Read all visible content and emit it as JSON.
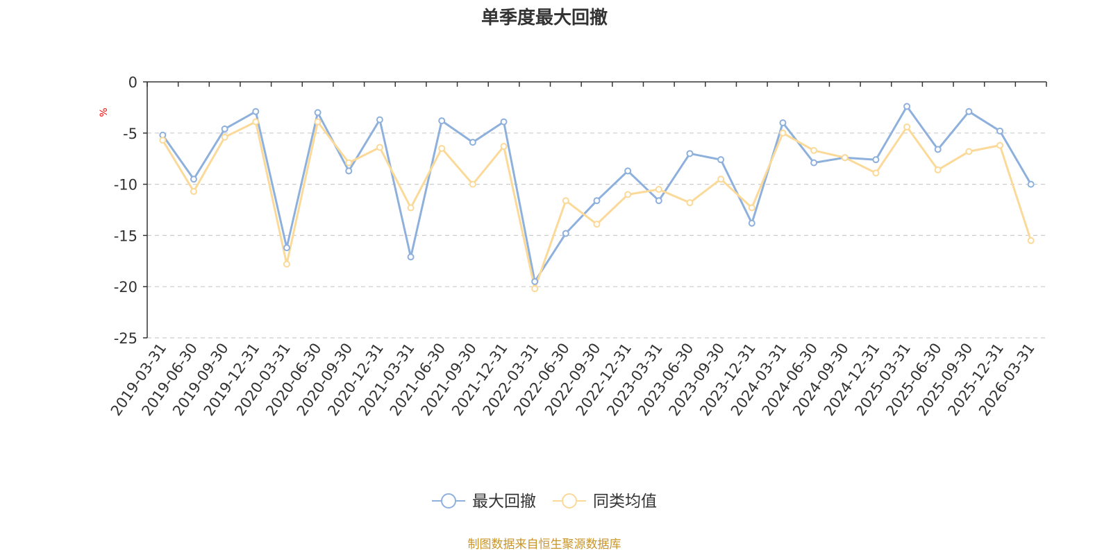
{
  "chart_data": {
    "type": "line",
    "title": "单季度最大回撤",
    "ylabel": "%",
    "xlabel": "",
    "ylim": [
      -25,
      0
    ],
    "yticks": [
      0,
      -5,
      -10,
      -15,
      -20,
      -25
    ],
    "grid": true,
    "legend_position": "bottom-center",
    "categories": [
      "2019-03-31",
      "2019-06-30",
      "2019-09-30",
      "2019-12-31",
      "2020-03-31",
      "2020-06-30",
      "2020-09-30",
      "2020-12-31",
      "2021-03-31",
      "2021-06-30",
      "2021-09-30",
      "2021-12-31",
      "2022-03-31",
      "2022-06-30",
      "2022-09-30",
      "2022-12-31",
      "2023-03-31",
      "2023-06-30",
      "2023-09-30",
      "2023-12-31",
      "2024-03-31",
      "2024-06-30",
      "2024-09-30",
      "2024-12-31",
      "2025-03-31",
      "2025-06-30",
      "2025-09-30",
      "2025-12-31",
      "2026-03-31"
    ],
    "series": [
      {
        "name": "最大回撤",
        "color": "#8eb0dc",
        "values": [
          -5.2,
          -9.5,
          -4.6,
          -2.9,
          -16.2,
          -3.0,
          -8.7,
          -3.7,
          -17.1,
          -3.8,
          -5.9,
          -3.9,
          -19.5,
          -14.8,
          -11.6,
          -8.7,
          -11.6,
          -7.0,
          -7.6,
          -13.8,
          -4.0,
          -7.9,
          -7.4,
          -7.6,
          -2.4,
          -6.6,
          -2.9,
          -4.8,
          -10.0
        ]
      },
      {
        "name": "同类均值",
        "color": "#fbd998",
        "values": [
          -5.7,
          -10.7,
          -5.4,
          -3.9,
          -17.8,
          -3.9,
          -7.9,
          -6.4,
          -12.3,
          -6.5,
          -10.0,
          -6.3,
          -20.2,
          -11.6,
          -13.9,
          -11.0,
          -10.5,
          -11.8,
          -9.5,
          -12.3,
          -5.0,
          -6.7,
          -7.4,
          -8.9,
          -4.4,
          -8.6,
          -6.8,
          -6.2,
          -15.5
        ]
      }
    ],
    "source": "制图数据来自恒生聚源数据库"
  }
}
